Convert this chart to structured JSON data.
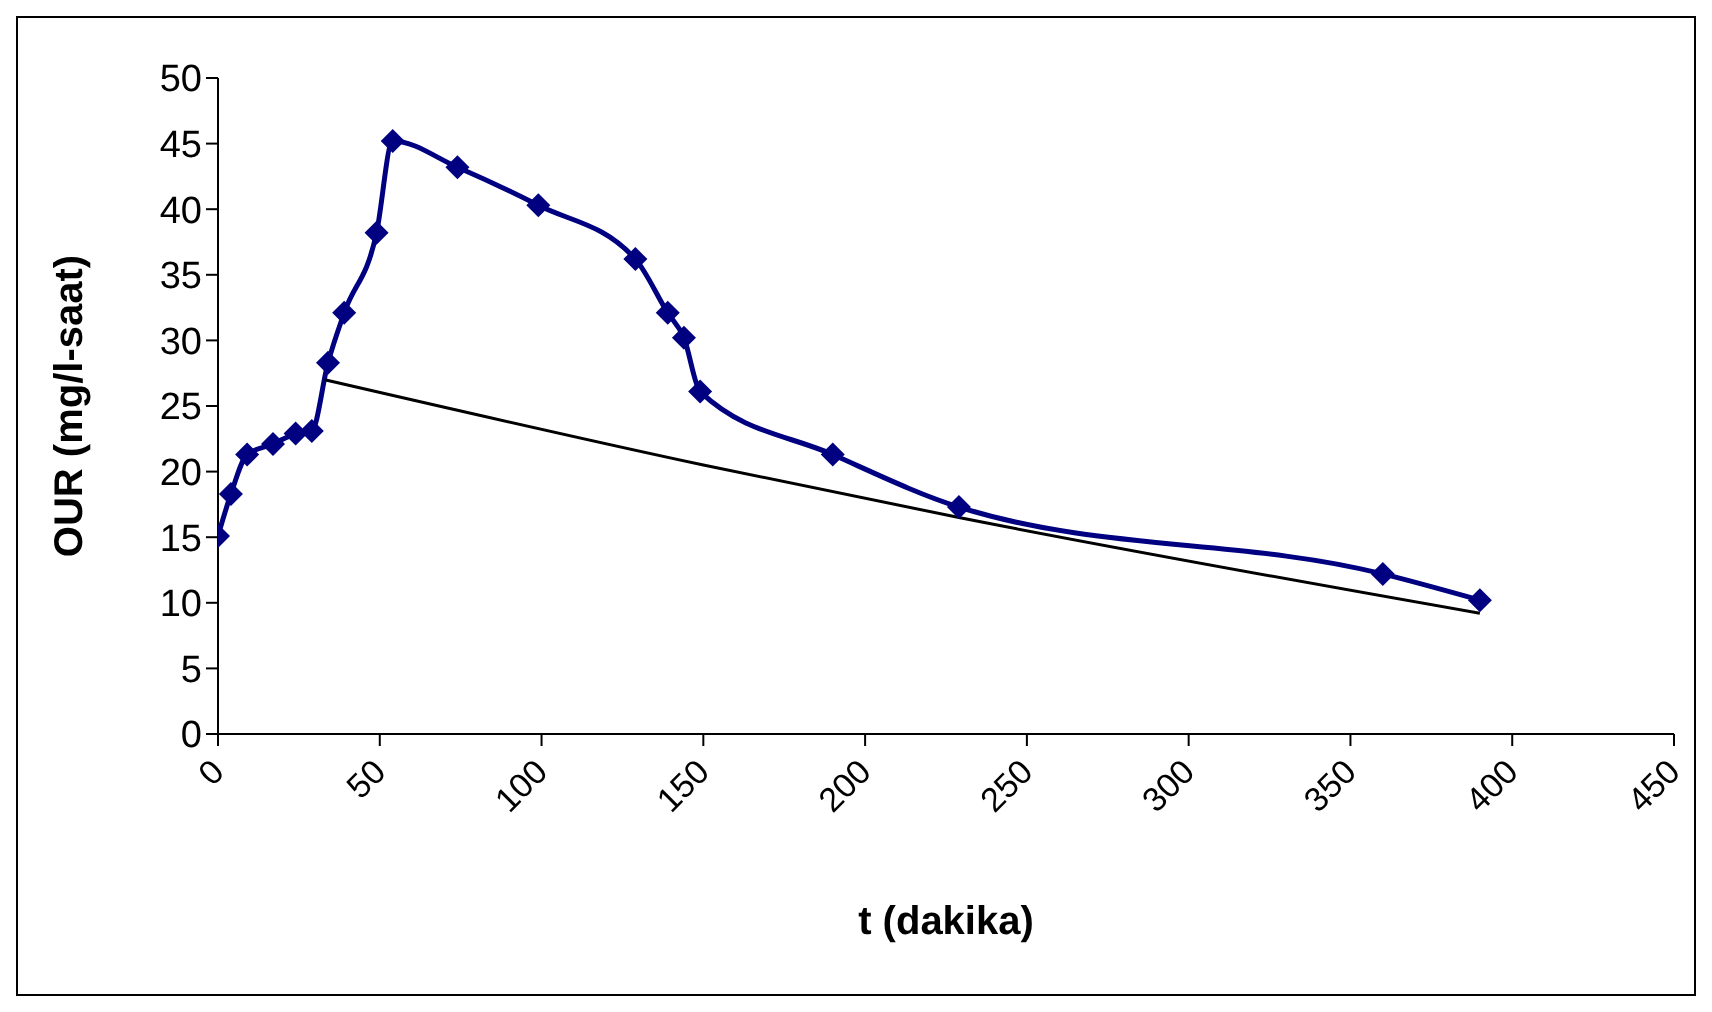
{
  "chart_data": {
    "type": "line",
    "xlabel": "t (dakika)",
    "ylabel": "OUR (mg/l-saat)",
    "xlim": [
      0,
      450
    ],
    "xticks": [
      0,
      50,
      100,
      150,
      200,
      250,
      300,
      350,
      400,
      450
    ],
    "ylim": [
      0,
      50
    ],
    "yticks": [
      0,
      5,
      10,
      15,
      20,
      25,
      30,
      35,
      40,
      45,
      50
    ],
    "line_style": "solid",
    "series": [
      {
        "color": "#000080",
        "marker": "diamond",
        "x": [
          0,
          4,
          9,
          17,
          24,
          29,
          34,
          39,
          49,
          54,
          74,
          99,
          129,
          139,
          144,
          149,
          190,
          229,
          360,
          390
        ],
        "values": [
          15.1,
          18.3,
          21.3,
          22.1,
          22.9,
          23.1,
          28.3,
          32.1,
          38.2,
          45.2,
          43.2,
          40.3,
          36.2,
          32.1,
          30.2,
          26.1,
          21.3,
          17.3,
          12.2,
          10.2
        ]
      },
      {
        "color": "#000000",
        "marker": "none",
        "x": [
          33,
          150,
          229,
          390
        ],
        "values": [
          27,
          20.5,
          16.5,
          9.2
        ]
      }
    ]
  }
}
